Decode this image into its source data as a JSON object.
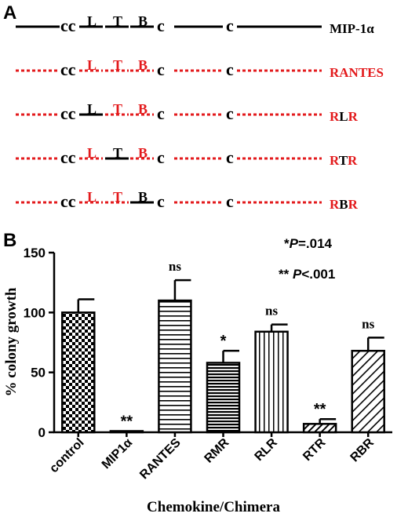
{
  "panel_a": {
    "label": "A",
    "rows": [
      {
        "name": "MIP-1α",
        "base": "black",
        "segments": {
          "L": "black",
          "T": "black",
          "B": "black"
        },
        "name_parts": [
          {
            "text": "MIP-1α",
            "color": "black"
          }
        ]
      },
      {
        "name": "RANTES",
        "base": "red",
        "segments": {
          "L": "red",
          "T": "red",
          "B": "red"
        },
        "name_parts": [
          {
            "text": "RANTES",
            "color": "red"
          }
        ]
      },
      {
        "name": "RLR",
        "base": "red",
        "segments": {
          "L": "black",
          "T": "red",
          "B": "red"
        },
        "name_parts": [
          {
            "text": "R",
            "color": "red"
          },
          {
            "text": "L",
            "color": "black"
          },
          {
            "text": "R",
            "color": "red"
          }
        ]
      },
      {
        "name": "RTR",
        "base": "red",
        "segments": {
          "L": "red",
          "T": "black",
          "B": "red"
        },
        "name_parts": [
          {
            "text": "R",
            "color": "red"
          },
          {
            "text": "T",
            "color": "black"
          },
          {
            "text": "R",
            "color": "red"
          }
        ]
      },
      {
        "name": "RBR",
        "base": "red",
        "segments": {
          "L": "red",
          "T": "red",
          "B": "black"
        },
        "name_parts": [
          {
            "text": "R",
            "color": "red"
          },
          {
            "text": "B",
            "color": "black"
          },
          {
            "text": "R",
            "color": "red"
          }
        ]
      }
    ],
    "motif_cc": "cc",
    "motif_c": "c",
    "segment_letters": [
      "L",
      "T",
      "B"
    ],
    "colors": {
      "black": "#000000",
      "red": "#e31a1c"
    }
  },
  "chart_data": {
    "panel_label": "B",
    "type": "bar",
    "categories": [
      "control",
      "MIP1α",
      "RANTES",
      "RMR",
      "RLR",
      "RTR",
      "RBR"
    ],
    "values": [
      100,
      1,
      110,
      58,
      84,
      7,
      68
    ],
    "errors": [
      11,
      0,
      17,
      10,
      6,
      4,
      11
    ],
    "significance": [
      "",
      "**",
      "ns",
      "*",
      "ns",
      "**",
      "ns"
    ],
    "patterns": [
      "checker",
      "none",
      "hlines",
      "hlines-dense",
      "vlines",
      "diag",
      "diag-wide"
    ],
    "ylabel": "% colony growth",
    "xlabel": "Chemokine/Chimera",
    "yticks": [
      0,
      50,
      100,
      150
    ],
    "ylim": [
      0,
      150
    ],
    "legend": [
      {
        "stars": "*",
        "italic": "P",
        "rest": "=.014"
      },
      {
        "stars": "** ",
        "italic": "P",
        "rest": "<.001"
      }
    ]
  }
}
